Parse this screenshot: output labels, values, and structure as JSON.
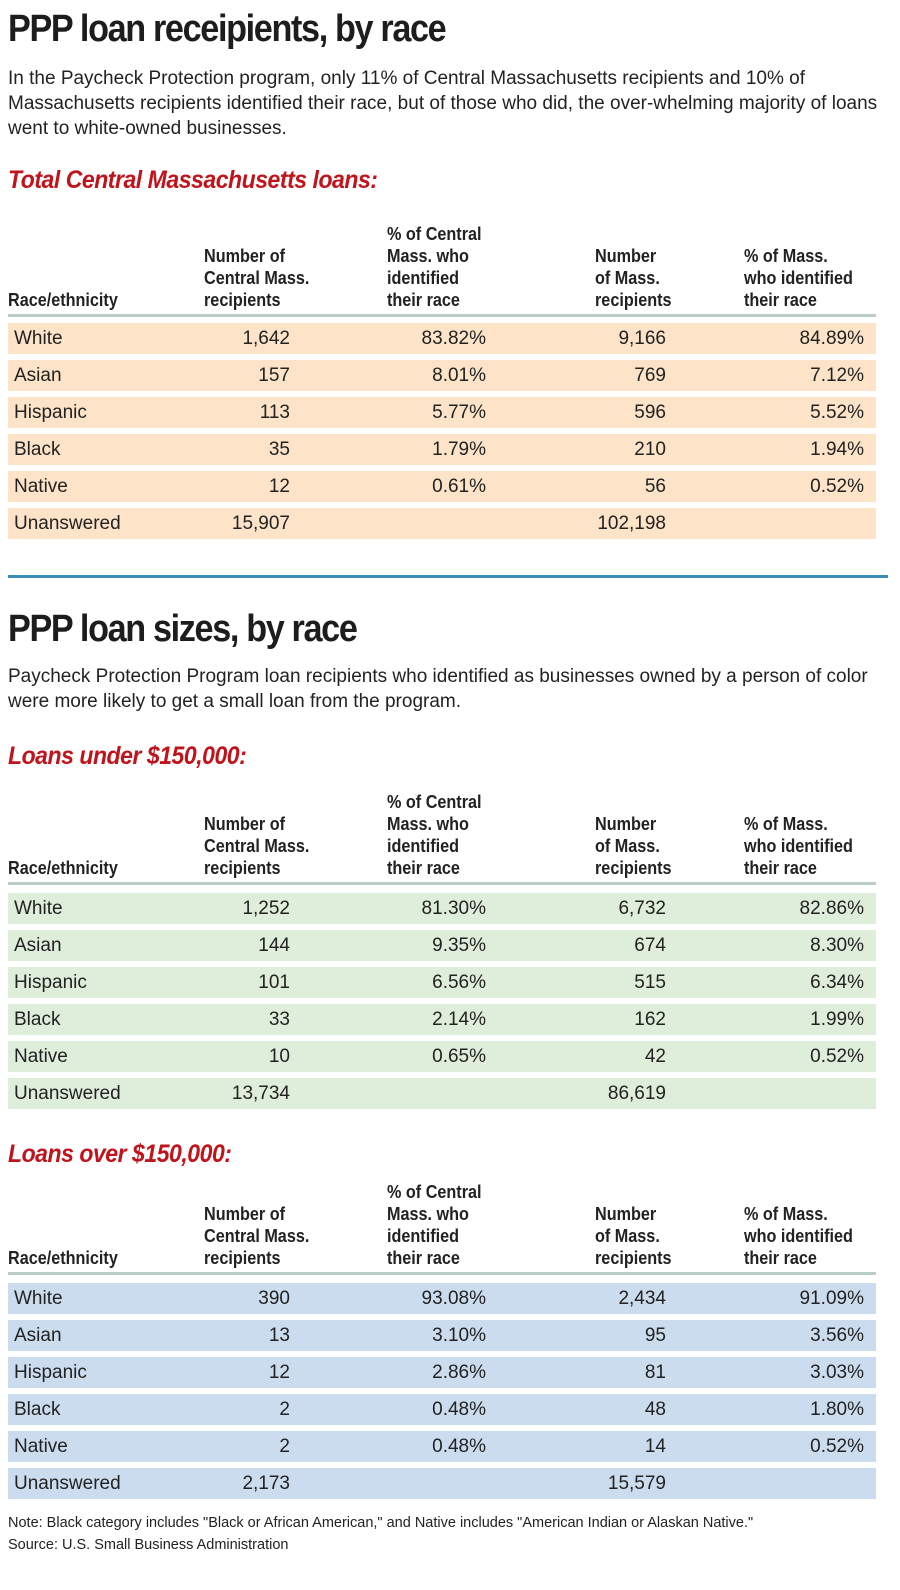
{
  "colors": {
    "orange": "#fde3c8",
    "green": "#dfeedb",
    "blue": "#ccdcef",
    "accent_red": "#c0141c",
    "divider": "#3d8db8"
  },
  "headers": [
    "Race/ethnicity",
    "Number of\nCentral Mass.\nrecipients",
    "% of Central\nMass. who\nidentified\ntheir race",
    "Number\nof Mass.\nrecipients",
    "% of Mass.\nwho identified\ntheir race"
  ],
  "section1": {
    "title": "PPP loan receipients, by race",
    "description": "In the Paycheck Protection program, only 11% of Central Massachusetts recipients and 10% of Massachusetts recipients identified their race, but of those who did, the over-whelming majority of loans went to white-owned businesses."
  },
  "section2": {
    "title": "PPP loan sizes, by race",
    "description": "Paycheck Protection Program loan recipients who identified as businesses owned by a person of color were more likely to get a small loan from the program."
  },
  "tables": [
    {
      "subtitle": "Total Central Massachusetts loans:",
      "color": "#fde3c8",
      "rows": [
        [
          "White",
          "1,642",
          "83.82%",
          "9,166",
          "84.89%"
        ],
        [
          "Asian",
          "157",
          "8.01%",
          "769",
          "7.12%"
        ],
        [
          "Hispanic",
          "113",
          "5.77%",
          "596",
          "5.52%"
        ],
        [
          "Black",
          "35",
          "1.79%",
          "210",
          "1.94%"
        ],
        [
          "Native",
          "12",
          "0.61%",
          "56",
          "0.52%"
        ],
        [
          "Unanswered",
          "15,907",
          "",
          "102,198",
          ""
        ]
      ]
    },
    {
      "subtitle": "Loans under $150,000:",
      "color": "#dfeedb",
      "rows": [
        [
          "White",
          "1,252",
          "81.30%",
          "6,732",
          "82.86%"
        ],
        [
          "Asian",
          "144",
          "9.35%",
          "674",
          "8.30%"
        ],
        [
          "Hispanic",
          "101",
          "6.56%",
          "515",
          "6.34%"
        ],
        [
          "Black",
          "33",
          "2.14%",
          "162",
          "1.99%"
        ],
        [
          "Native",
          "10",
          "0.65%",
          "42",
          "0.52%"
        ],
        [
          "Unanswered",
          "13,734",
          "",
          "86,619",
          ""
        ]
      ]
    },
    {
      "subtitle": "Loans over $150,000:",
      "color": "#ccdcef",
      "rows": [
        [
          "White",
          "390",
          "93.08%",
          "2,434",
          "91.09%"
        ],
        [
          "Asian",
          "13",
          "3.10%",
          "95",
          "3.56%"
        ],
        [
          "Hispanic",
          "12",
          "2.86%",
          "81",
          "3.03%"
        ],
        [
          "Black",
          "2",
          "0.48%",
          "48",
          "1.80%"
        ],
        [
          "Native",
          "2",
          "0.48%",
          "14",
          "0.52%"
        ],
        [
          "Unanswered",
          "2,173",
          "",
          "15,579",
          ""
        ]
      ]
    }
  ],
  "note": "Note: Black category includes \"Black or African American,\" and Native includes \"American Indian or Alaskan Native.\"",
  "source": "Source: U.S. Small Business Administration"
}
